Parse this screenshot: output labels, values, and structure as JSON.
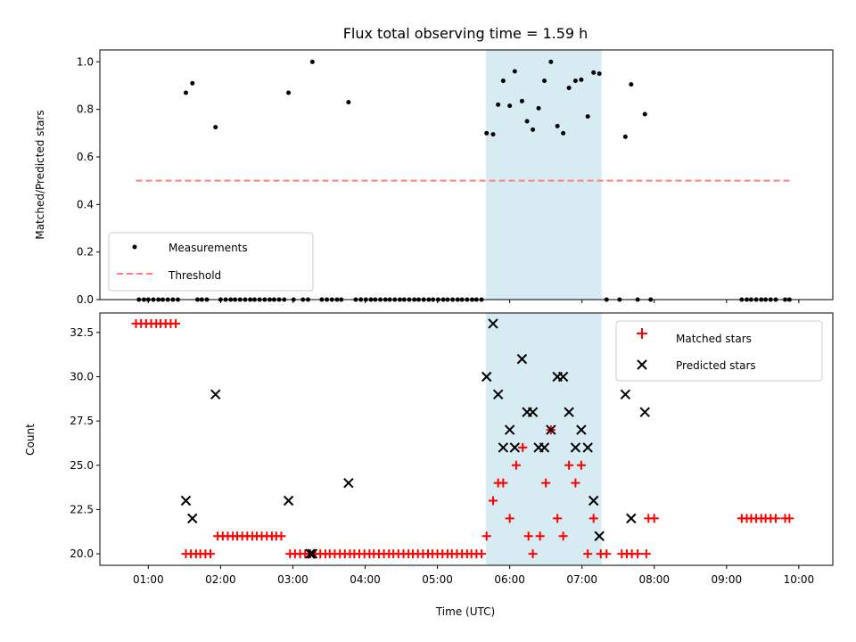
{
  "chart_data": [
    {
      "type": "scatter",
      "title": "Flux total observing time = 1.59 h",
      "xlabel": "",
      "ylabel": "Matched/Predicted stars",
      "xlim": [
        0.33,
        10.47
      ],
      "ylim": [
        0.0,
        1.05
      ],
      "yticks": [
        {
          "v": 0.0,
          "label": "0.0"
        },
        {
          "v": 0.2,
          "label": "0.2"
        },
        {
          "v": 0.4,
          "label": "0.4"
        },
        {
          "v": 0.6,
          "label": "0.6"
        },
        {
          "v": 0.8,
          "label": "0.8"
        },
        {
          "v": 1.0,
          "label": "1.0"
        }
      ],
      "highlight_span": {
        "x0": 5.67,
        "x1": 7.27,
        "color": "#add8e6"
      },
      "legend": {
        "position": "lower-left",
        "entries": [
          "Measurements",
          "Threshold"
        ]
      },
      "series": [
        {
          "name": "Measurements",
          "marker": "dot",
          "color": "#000000",
          "points": [
            [
              0.87,
              0
            ],
            [
              0.94,
              0
            ],
            [
              1.0,
              0
            ],
            [
              1.07,
              0
            ],
            [
              1.14,
              0
            ],
            [
              1.2,
              0
            ],
            [
              1.27,
              0
            ],
            [
              1.34,
              0
            ],
            [
              1.41,
              0
            ],
            [
              1.52,
              0.87
            ],
            [
              1.61,
              0.91
            ],
            [
              1.68,
              0
            ],
            [
              1.74,
              0
            ],
            [
              1.81,
              0
            ],
            [
              1.93,
              0.725
            ],
            [
              2.0,
              0
            ],
            [
              2.07,
              0
            ],
            [
              2.14,
              0
            ],
            [
              2.2,
              0
            ],
            [
              2.27,
              0
            ],
            [
              2.34,
              0
            ],
            [
              2.41,
              0
            ],
            [
              2.47,
              0
            ],
            [
              2.54,
              0
            ],
            [
              2.61,
              0
            ],
            [
              2.68,
              0
            ],
            [
              2.74,
              0
            ],
            [
              2.81,
              0
            ],
            [
              2.88,
              0
            ],
            [
              2.94,
              0.87
            ],
            [
              3.01,
              0
            ],
            [
              3.14,
              0
            ],
            [
              3.21,
              0
            ],
            [
              3.27,
              1.0
            ],
            [
              3.4,
              0
            ],
            [
              3.47,
              0
            ],
            [
              3.54,
              0
            ],
            [
              3.61,
              0
            ],
            [
              3.67,
              0
            ],
            [
              3.77,
              0.83
            ],
            [
              3.87,
              0
            ],
            [
              3.94,
              0
            ],
            [
              4.01,
              0
            ],
            [
              4.08,
              0
            ],
            [
              4.14,
              0
            ],
            [
              4.21,
              0
            ],
            [
              4.28,
              0
            ],
            [
              4.34,
              0
            ],
            [
              4.41,
              0
            ],
            [
              4.48,
              0
            ],
            [
              4.54,
              0
            ],
            [
              4.61,
              0
            ],
            [
              4.68,
              0
            ],
            [
              4.74,
              0
            ],
            [
              4.81,
              0
            ],
            [
              4.88,
              0
            ],
            [
              4.94,
              0
            ],
            [
              5.01,
              0
            ],
            [
              5.08,
              0
            ],
            [
              5.14,
              0
            ],
            [
              5.21,
              0
            ],
            [
              5.28,
              0
            ],
            [
              5.34,
              0
            ],
            [
              5.41,
              0
            ],
            [
              5.48,
              0
            ],
            [
              5.54,
              0
            ],
            [
              5.61,
              0
            ],
            [
              5.68,
              0.7
            ],
            [
              5.77,
              0.695
            ],
            [
              5.84,
              0.82
            ],
            [
              5.91,
              0.92
            ],
            [
              6.0,
              0.815
            ],
            [
              6.07,
              0.96
            ],
            [
              6.17,
              0.835
            ],
            [
              6.24,
              0.75
            ],
            [
              6.32,
              0.715
            ],
            [
              6.4,
              0.805
            ],
            [
              6.48,
              0.92
            ],
            [
              6.57,
              1.0
            ],
            [
              6.66,
              0.73
            ],
            [
              6.74,
              0.7
            ],
            [
              6.82,
              0.89
            ],
            [
              6.91,
              0.92
            ],
            [
              6.99,
              0.925
            ],
            [
              7.08,
              0.77
            ],
            [
              7.16,
              0.955
            ],
            [
              7.24,
              0.95
            ],
            [
              7.34,
              0
            ],
            [
              7.52,
              0
            ],
            [
              7.6,
              0.685
            ],
            [
              7.68,
              0.905
            ],
            [
              7.77,
              0
            ],
            [
              7.87,
              0.78
            ],
            [
              7.95,
              0
            ],
            [
              9.21,
              0
            ],
            [
              9.28,
              0
            ],
            [
              9.34,
              0
            ],
            [
              9.41,
              0
            ],
            [
              9.48,
              0
            ],
            [
              9.54,
              0
            ],
            [
              9.61,
              0
            ],
            [
              9.68,
              0
            ],
            [
              9.81,
              0
            ],
            [
              9.87,
              0
            ]
          ]
        },
        {
          "name": "Threshold",
          "marker": "dashed-line",
          "color": "#ff7f7f",
          "line": [
            [
              0.83,
              0.5
            ],
            [
              9.87,
              0.5
            ]
          ]
        }
      ]
    },
    {
      "type": "scatter",
      "title": "",
      "xlabel": "Time (UTC)",
      "ylabel": "Count",
      "xlim": [
        0.33,
        10.47
      ],
      "ylim": [
        19.35,
        33.6
      ],
      "xticks": [
        {
          "v": 1,
          "label": "01:00"
        },
        {
          "v": 2,
          "label": "02:00"
        },
        {
          "v": 3,
          "label": "03:00"
        },
        {
          "v": 4,
          "label": "04:00"
        },
        {
          "v": 5,
          "label": "05:00"
        },
        {
          "v": 6,
          "label": "06:00"
        },
        {
          "v": 7,
          "label": "07:00"
        },
        {
          "v": 8,
          "label": "08:00"
        },
        {
          "v": 9,
          "label": "09:00"
        },
        {
          "v": 10,
          "label": "10:00"
        }
      ],
      "yticks": [
        {
          "v": 20.0,
          "label": "20.0"
        },
        {
          "v": 22.5,
          "label": "22.5"
        },
        {
          "v": 25.0,
          "label": "25.0"
        },
        {
          "v": 27.5,
          "label": "27.5"
        },
        {
          "v": 30.0,
          "label": "30.0"
        },
        {
          "v": 32.5,
          "label": "32.5"
        }
      ],
      "highlight_span": {
        "x0": 5.67,
        "x1": 7.27,
        "color": "#add8e6"
      },
      "legend": {
        "position": "top-right",
        "entries": [
          "Matched stars",
          "Predicted stars"
        ]
      },
      "series": [
        {
          "name": "Matched stars",
          "marker": "plus",
          "color": "#ff0000",
          "points": [
            [
              0.83,
              33
            ],
            [
              0.9,
              33
            ],
            [
              0.97,
              33
            ],
            [
              1.04,
              33
            ],
            [
              1.11,
              33
            ],
            [
              1.17,
              33
            ],
            [
              1.24,
              33
            ],
            [
              1.31,
              33
            ],
            [
              1.38,
              33
            ],
            [
              1.52,
              20
            ],
            [
              1.59,
              20
            ],
            [
              1.66,
              20
            ],
            [
              1.72,
              20
            ],
            [
              1.79,
              20
            ],
            [
              1.86,
              20
            ],
            [
              1.96,
              21
            ],
            [
              2.03,
              21
            ],
            [
              2.1,
              21
            ],
            [
              2.17,
              21
            ],
            [
              2.23,
              21
            ],
            [
              2.3,
              21
            ],
            [
              2.37,
              21
            ],
            [
              2.44,
              21
            ],
            [
              2.5,
              21
            ],
            [
              2.57,
              21
            ],
            [
              2.64,
              21
            ],
            [
              2.71,
              21
            ],
            [
              2.77,
              21
            ],
            [
              2.84,
              21
            ],
            [
              2.96,
              20
            ],
            [
              3.03,
              20
            ],
            [
              3.1,
              20
            ],
            [
              3.17,
              20
            ],
            [
              3.24,
              20
            ],
            [
              3.31,
              20
            ],
            [
              3.38,
              20
            ],
            [
              3.45,
              20
            ],
            [
              3.51,
              20
            ],
            [
              3.58,
              20
            ],
            [
              3.65,
              20
            ],
            [
              3.72,
              20
            ],
            [
              3.79,
              20
            ],
            [
              3.85,
              20
            ],
            [
              3.92,
              20
            ],
            [
              3.99,
              20
            ],
            [
              4.06,
              20
            ],
            [
              4.12,
              20
            ],
            [
              4.19,
              20
            ],
            [
              4.26,
              20
            ],
            [
              4.33,
              20
            ],
            [
              4.39,
              20
            ],
            [
              4.46,
              20
            ],
            [
              4.53,
              20
            ],
            [
              4.6,
              20
            ],
            [
              4.66,
              20
            ],
            [
              4.73,
              20
            ],
            [
              4.8,
              20
            ],
            [
              4.87,
              20
            ],
            [
              4.93,
              20
            ],
            [
              5.0,
              20
            ],
            [
              5.07,
              20
            ],
            [
              5.14,
              20
            ],
            [
              5.2,
              20
            ],
            [
              5.27,
              20
            ],
            [
              5.34,
              20
            ],
            [
              5.41,
              20
            ],
            [
              5.47,
              20
            ],
            [
              5.54,
              20
            ],
            [
              5.61,
              20
            ],
            [
              5.68,
              21
            ],
            [
              5.77,
              23
            ],
            [
              5.84,
              24
            ],
            [
              5.91,
              24
            ],
            [
              6.0,
              22
            ],
            [
              6.09,
              25
            ],
            [
              6.18,
              26
            ],
            [
              6.26,
              21
            ],
            [
              6.32,
              20
            ],
            [
              6.42,
              21
            ],
            [
              6.5,
              24
            ],
            [
              6.57,
              27
            ],
            [
              6.66,
              22
            ],
            [
              6.74,
              21
            ],
            [
              6.82,
              25
            ],
            [
              6.91,
              24
            ],
            [
              6.99,
              25
            ],
            [
              7.08,
              20
            ],
            [
              7.16,
              22
            ],
            [
              7.26,
              20
            ],
            [
              7.34,
              20
            ],
            [
              7.55,
              20
            ],
            [
              7.62,
              20
            ],
            [
              7.69,
              20
            ],
            [
              7.77,
              20
            ],
            [
              7.89,
              20
            ],
            [
              7.92,
              22
            ],
            [
              8.0,
              22
            ],
            [
              9.21,
              22
            ],
            [
              9.28,
              22
            ],
            [
              9.34,
              22
            ],
            [
              9.41,
              22
            ],
            [
              9.48,
              22
            ],
            [
              9.54,
              22
            ],
            [
              9.61,
              22
            ],
            [
              9.68,
              22
            ],
            [
              9.81,
              22
            ],
            [
              9.87,
              22
            ]
          ]
        },
        {
          "name": "Predicted stars",
          "marker": "x",
          "color": "#000000",
          "points": [
            [
              1.52,
              23
            ],
            [
              1.61,
              22
            ],
            [
              1.93,
              29
            ],
            [
              2.94,
              23
            ],
            [
              3.24,
              20
            ],
            [
              3.27,
              20
            ],
            [
              3.77,
              24
            ],
            [
              5.68,
              30
            ],
            [
              5.77,
              33
            ],
            [
              5.84,
              29
            ],
            [
              5.91,
              26
            ],
            [
              6.0,
              27
            ],
            [
              6.07,
              26
            ],
            [
              6.17,
              31
            ],
            [
              6.24,
              28
            ],
            [
              6.32,
              28
            ],
            [
              6.4,
              26
            ],
            [
              6.48,
              26
            ],
            [
              6.57,
              27
            ],
            [
              6.66,
              30
            ],
            [
              6.74,
              30
            ],
            [
              6.82,
              28
            ],
            [
              6.91,
              26
            ],
            [
              6.99,
              27
            ],
            [
              7.08,
              26
            ],
            [
              7.16,
              23
            ],
            [
              7.24,
              21
            ],
            [
              7.6,
              29
            ],
            [
              7.68,
              22
            ],
            [
              7.87,
              28
            ]
          ]
        }
      ]
    }
  ]
}
